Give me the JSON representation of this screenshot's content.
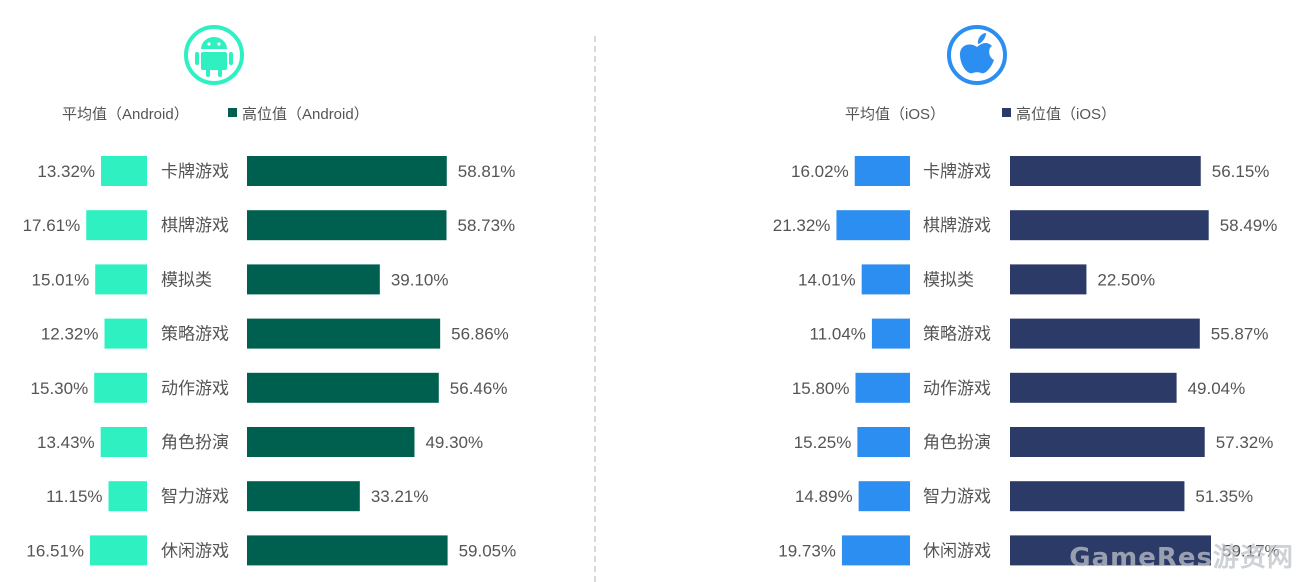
{
  "chart_data": [
    {
      "type": "bar",
      "platform": "Android",
      "icon": "android-icon",
      "categories": [
        "卡牌游戏",
        "棋牌游戏",
        "模拟类",
        "策略游戏",
        "动作游戏",
        "角色扮演",
        "智力游戏",
        "休闲游戏"
      ],
      "series": [
        {
          "name": "平均值（Android）",
          "color": "#2ef0c0",
          "values": [
            13.32,
            17.61,
            15.01,
            12.32,
            15.3,
            13.43,
            11.15,
            16.51
          ],
          "labels": [
            "13.32%",
            "17.61%",
            "15.01%",
            "12.32%",
            "15.30%",
            "13.43%",
            "11.15%",
            "16.51%"
          ]
        },
        {
          "name": "高位值（Android）",
          "color": "#00604f",
          "values": [
            58.81,
            58.73,
            39.1,
            56.86,
            56.46,
            49.3,
            33.21,
            59.05
          ],
          "labels": [
            "58.81%",
            "58.73%",
            "39.10%",
            "56.86%",
            "56.46%",
            "49.30%",
            "33.21%",
            "59.05%"
          ]
        }
      ]
    },
    {
      "type": "bar",
      "platform": "iOS",
      "icon": "apple-icon",
      "categories": [
        "卡牌游戏",
        "棋牌游戏",
        "模拟类",
        "策略游戏",
        "动作游戏",
        "角色扮演",
        "智力游戏",
        "休闲游戏"
      ],
      "series": [
        {
          "name": "平均值（iOS）",
          "color": "#2b8ef0",
          "values": [
            16.02,
            21.32,
            14.01,
            11.04,
            15.8,
            15.25,
            14.89,
            19.73
          ],
          "labels": [
            "16.02%",
            "21.32%",
            "14.01%",
            "11.04%",
            "15.80%",
            "15.25%",
            "14.89%",
            "19.73%"
          ]
        },
        {
          "name": "高位值（iOS）",
          "color": "#2b3a66",
          "values": [
            56.15,
            58.49,
            22.5,
            55.87,
            49.04,
            57.32,
            51.35,
            59.17
          ],
          "labels": [
            "56.15%",
            "58.49%",
            "22.50%",
            "55.87%",
            "49.04%",
            "57.32%",
            "51.35%",
            "59.17%"
          ]
        }
      ]
    }
  ],
  "watermark": "GameRes游资网"
}
